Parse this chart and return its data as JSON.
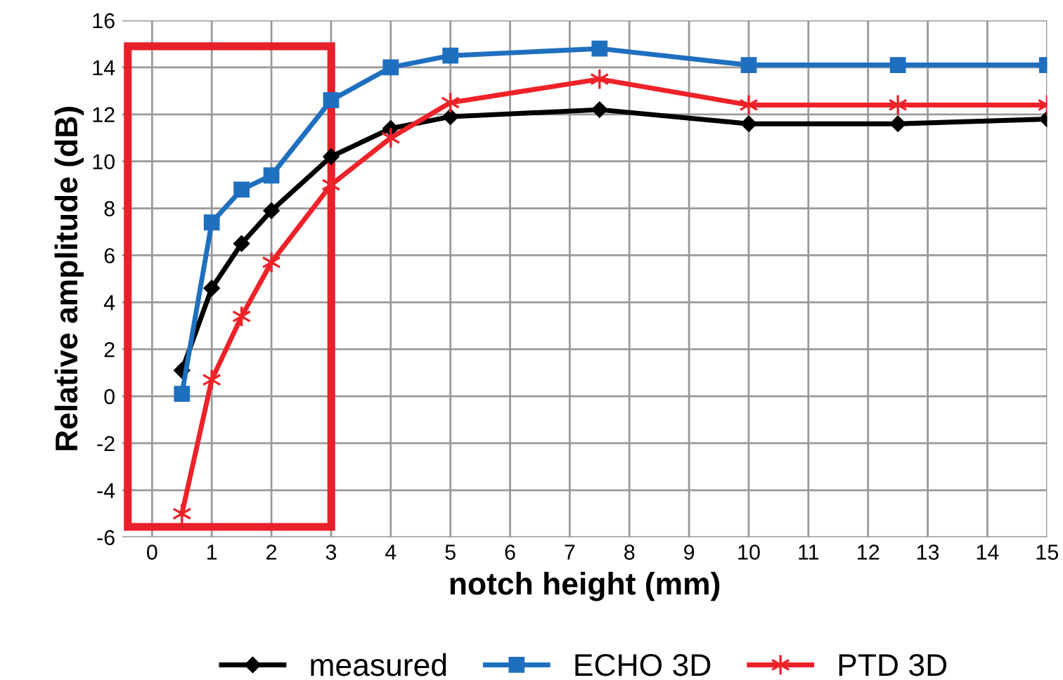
{
  "chart_data": {
    "type": "line",
    "xlabel": "notch height (mm)",
    "ylabel": "Relative amplitude (dB)",
    "x": [
      0.5,
      1,
      1.5,
      2,
      3,
      4,
      5,
      7.5,
      10,
      12.5,
      15
    ],
    "series": [
      {
        "name": "measured",
        "color": "#000000",
        "marker": "diamond",
        "values": [
          1.1,
          4.6,
          6.5,
          7.9,
          10.2,
          11.4,
          11.9,
          12.2,
          11.6,
          11.6,
          11.8
        ]
      },
      {
        "name": "ECHO 3D",
        "color": "#1f6fbf",
        "marker": "square",
        "values": [
          0.1,
          7.4,
          8.8,
          9.4,
          12.6,
          14.0,
          14.5,
          14.8,
          14.1,
          14.1,
          14.1
        ]
      },
      {
        "name": "PTD 3D",
        "color": "#ee2229",
        "marker": "cross",
        "values": [
          -5.0,
          0.7,
          3.4,
          5.7,
          9.0,
          11.0,
          12.5,
          13.5,
          12.4,
          12.4,
          12.4
        ]
      }
    ],
    "xlim": [
      -0.5,
      15
    ],
    "xticks": [
      0,
      1,
      2,
      3,
      4,
      5,
      6,
      7,
      8,
      9,
      10,
      11,
      12,
      13,
      14,
      15
    ],
    "ylim": [
      -6,
      16
    ],
    "yticks": [
      -6,
      -4,
      -2,
      0,
      2,
      4,
      6,
      8,
      10,
      12,
      14,
      16
    ],
    "grid": true,
    "legend": "bottom"
  }
}
